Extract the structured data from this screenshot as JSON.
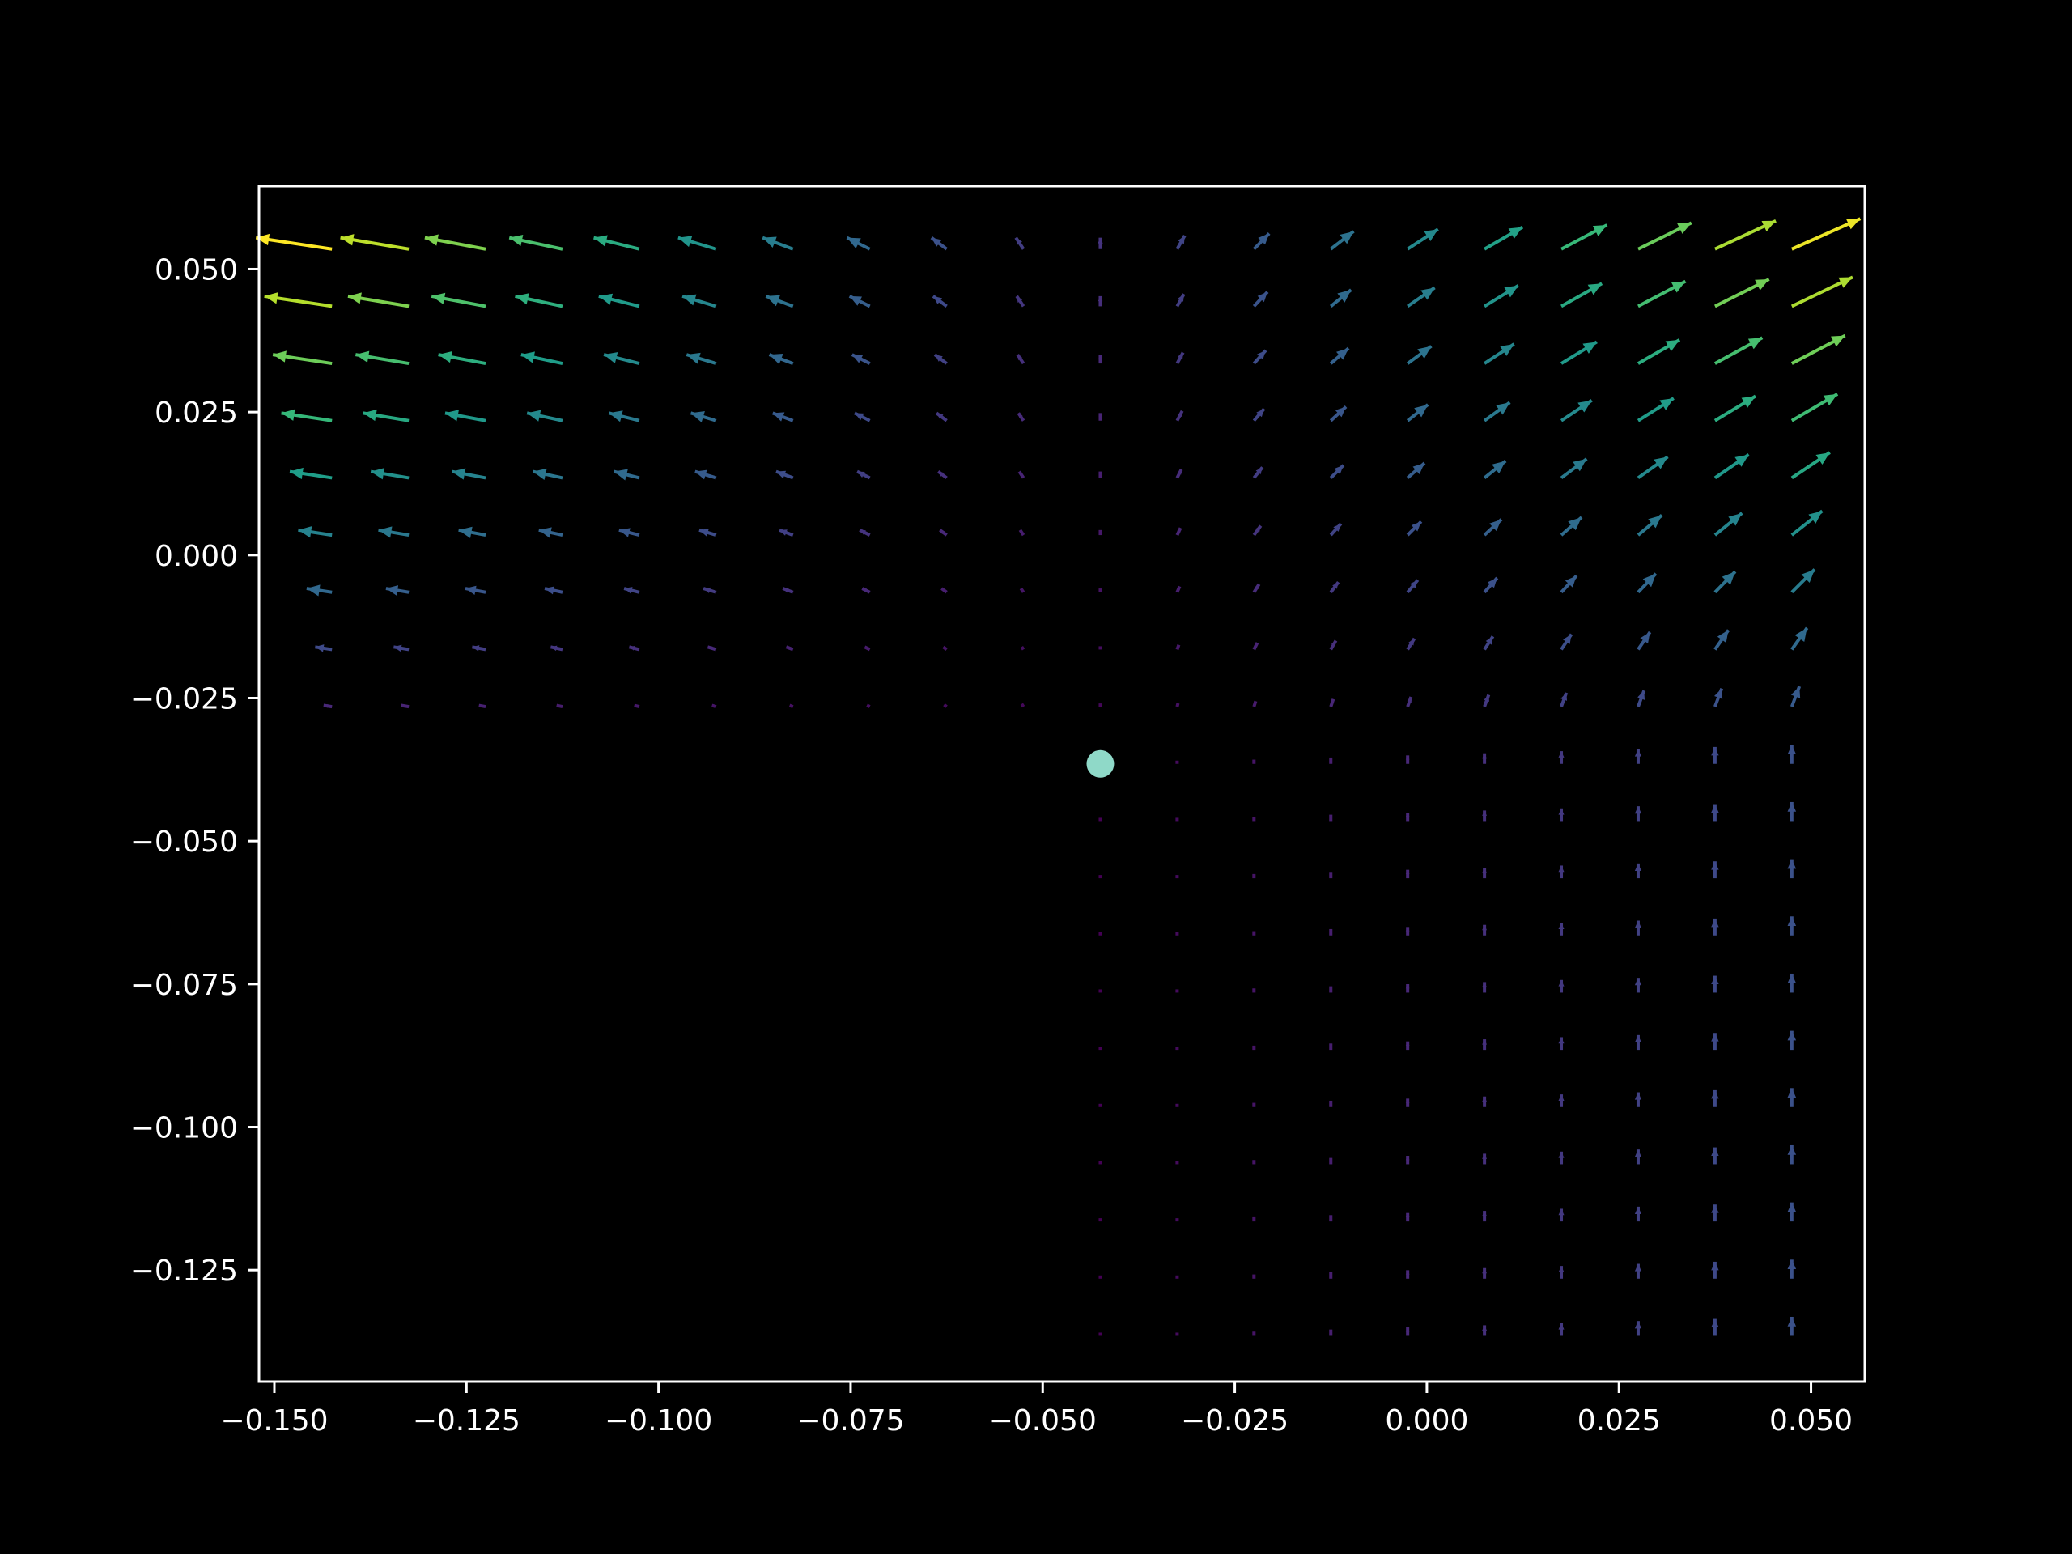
{
  "chart_data": {
    "type": "quiver",
    "title": "",
    "xlabel": "",
    "ylabel": "",
    "xlim": [
      -0.152,
      0.057
    ],
    "ylim": [
      -0.1445,
      0.0645
    ],
    "x_ticks": [
      -0.15,
      -0.125,
      -0.1,
      -0.075,
      -0.05,
      -0.025,
      0.0,
      0.025,
      0.05
    ],
    "x_tick_labels": [
      "−0.150",
      "−0.125",
      "−0.100",
      "−0.075",
      "−0.050",
      "−0.025",
      "0.000",
      "0.025",
      "0.050"
    ],
    "y_ticks": [
      0.05,
      0.025,
      0.0,
      -0.025,
      -0.05,
      -0.075,
      -0.1,
      -0.125
    ],
    "y_tick_labels": [
      "0.050",
      "0.025",
      "0.000",
      "−0.025",
      "−0.050",
      "−0.075",
      "−0.100",
      "−0.125"
    ],
    "grid": false,
    "legend": "none",
    "colormap": "viridis",
    "field": {
      "x_start": -0.1425,
      "x_step": 0.01,
      "x_count": 20,
      "y_start": -0.1365,
      "y_step": 0.01,
      "y_count": 20,
      "center": [
        -0.0425,
        -0.0365
      ],
      "description": "vectors point radially away from a center point, with field also pointing upward"
    },
    "marker": {
      "x": -0.0425,
      "y": -0.0365,
      "color": "#8fd9c8"
    },
    "colors": {
      "background": "#000000",
      "axes": "#ffffff",
      "text": "#ffffff"
    }
  }
}
